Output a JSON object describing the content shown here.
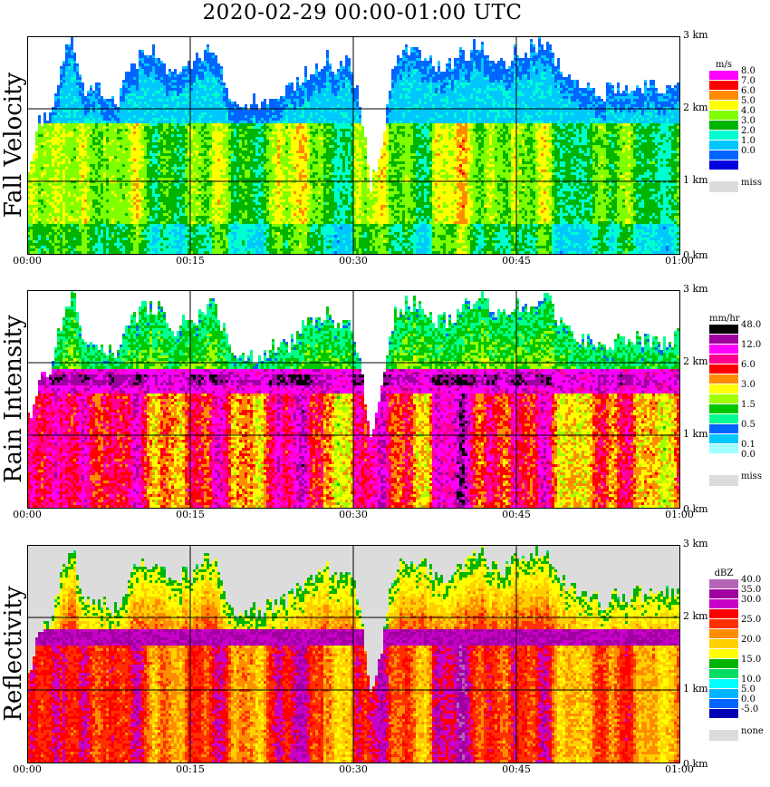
{
  "header": {
    "title": "2020-02-29   00:00-01:00 UTC"
  },
  "x_ticks": [
    "00:00",
    "00:15",
    "00:30",
    "00:45",
    "01:00"
  ],
  "y_ticks": [
    "0 km",
    "1 km",
    "2 km",
    "3 km"
  ],
  "panels": [
    {
      "id": "fall-velocity",
      "title": "Fall Velocity",
      "legend_unit": "m/s",
      "legend": [
        {
          "label": "8.0",
          "color": "#ff00ff"
        },
        {
          "label": "7.0",
          "color": "#ff0000"
        },
        {
          "label": "6.0",
          "color": "#ff8c00"
        },
        {
          "label": "5.0",
          "color": "#ffff00"
        },
        {
          "label": "4.0",
          "color": "#7fff00"
        },
        {
          "label": "3.0",
          "color": "#00b400"
        },
        {
          "label": "2.0",
          "color": "#00ffd0"
        },
        {
          "label": "1.0",
          "color": "#00c8ff"
        },
        {
          "label": "0.0",
          "color": "#0064ff"
        },
        {
          "label": "",
          "color": "#0000dc"
        },
        {
          "label": "miss",
          "color": "#dcdcdc",
          "missing": true
        }
      ]
    },
    {
      "id": "rain-intensity",
      "title": "Rain Intensity",
      "legend_unit": "mm/hr",
      "legend": [
        {
          "label": "48.0",
          "color": "#000000"
        },
        {
          "label": "",
          "color": "#a000a0"
        },
        {
          "label": "12.0",
          "color": "#ff00ff"
        },
        {
          "label": "",
          "color": "#ff0090"
        },
        {
          "label": "6.0",
          "color": "#ff0000"
        },
        {
          "label": "",
          "color": "#ff8c00"
        },
        {
          "label": "3.0",
          "color": "#ffff00"
        },
        {
          "label": "",
          "color": "#a0ff00"
        },
        {
          "label": "1.5",
          "color": "#00c800"
        },
        {
          "label": "",
          "color": "#00ff90"
        },
        {
          "label": "0.5",
          "color": "#0064ff"
        },
        {
          "label": "",
          "color": "#00c8ff"
        },
        {
          "label": "0.1",
          "color": "#a0ffff"
        },
        {
          "label": "0.0",
          "color": "#ffffff"
        },
        {
          "label": "miss",
          "color": "#dcdcdc",
          "missing": true
        }
      ]
    },
    {
      "id": "reflectivity",
      "title": "Reflectivity",
      "legend_unit": "dBZ",
      "legend": [
        {
          "label": "40.0",
          "color": "#b464b4"
        },
        {
          "label": "35.0",
          "color": "#a000a0"
        },
        {
          "label": "30.0",
          "color": "#c800c8"
        },
        {
          "label": "",
          "color": "#ff0000"
        },
        {
          "label": "25.0",
          "color": "#ff3000"
        },
        {
          "label": "",
          "color": "#ff8c00"
        },
        {
          "label": "20.0",
          "color": "#ffd000"
        },
        {
          "label": "",
          "color": "#ffff00"
        },
        {
          "label": "15.0",
          "color": "#00b400"
        },
        {
          "label": "",
          "color": "#00dc64"
        },
        {
          "label": "10.0",
          "color": "#00ffff"
        },
        {
          "label": "5.0",
          "color": "#00b4ff"
        },
        {
          "label": "0.0",
          "color": "#0064ff"
        },
        {
          "label": "-5.0",
          "color": "#0000b4"
        },
        {
          "label": "none",
          "color": "#dcdcdc",
          "missing": true
        }
      ]
    }
  ],
  "chart_data": [
    {
      "type": "heatmap",
      "title": "Fall Velocity",
      "x": [
        "00:00",
        "00:15",
        "00:30",
        "00:45",
        "01:00"
      ],
      "y_km": [
        0,
        1,
        2,
        3
      ],
      "legend_unit": "m/s",
      "color_scale": [
        8.0,
        7.0,
        6.0,
        5.0,
        4.0,
        3.0,
        2.0,
        1.0,
        0.0
      ],
      "missing_label": "miss",
      "echo_top_km": [
        1.2,
        1.8,
        1.9,
        2.6,
        3.0,
        2.2,
        2.3,
        2.2,
        2.1,
        2.5,
        2.7,
        2.8,
        2.7,
        2.4,
        2.6,
        2.6,
        2.8,
        2.8,
        2.3,
        2.0,
        2.1,
        2.1,
        2.2,
        2.2,
        2.3,
        2.5,
        2.6,
        2.7,
        2.5,
        2.7,
        2.1,
        0.9,
        1.6,
        2.6,
        2.8,
        2.8,
        2.7,
        2.6,
        2.6,
        2.7,
        2.8,
        2.9,
        2.7,
        2.6,
        2.8,
        2.8,
        2.9,
        2.9,
        2.6,
        2.4,
        2.3,
        2.3,
        2.2,
        2.3,
        2.3,
        2.3,
        2.3,
        2.3,
        2.3,
        2.4
      ]
    },
    {
      "type": "heatmap",
      "title": "Rain Intensity",
      "x": [
        "00:00",
        "00:15",
        "00:30",
        "00:45",
        "01:00"
      ],
      "y_km": [
        0,
        1,
        2,
        3
      ],
      "legend_unit": "mm/hr",
      "color_scale": [
        48.0,
        12.0,
        6.0,
        3.0,
        1.5,
        0.5,
        0.1,
        0.0
      ],
      "missing_label": "miss",
      "bright_band_km": 1.75,
      "echo_top_km": [
        1.2,
        1.8,
        1.9,
        2.6,
        3.0,
        2.2,
        2.3,
        2.2,
        2.1,
        2.5,
        2.7,
        2.8,
        2.7,
        2.4,
        2.6,
        2.6,
        2.8,
        2.8,
        2.3,
        2.0,
        2.1,
        2.1,
        2.2,
        2.2,
        2.3,
        2.5,
        2.6,
        2.7,
        2.5,
        2.7,
        2.1,
        0.9,
        1.6,
        2.6,
        2.8,
        2.8,
        2.7,
        2.6,
        2.6,
        2.7,
        2.8,
        2.9,
        2.7,
        2.6,
        2.8,
        2.8,
        2.9,
        2.9,
        2.6,
        2.4,
        2.3,
        2.3,
        2.2,
        2.3,
        2.3,
        2.3,
        2.3,
        2.3,
        2.3,
        2.4
      ]
    },
    {
      "type": "heatmap",
      "title": "Reflectivity",
      "x": [
        "00:00",
        "00:15",
        "00:30",
        "00:45",
        "01:00"
      ],
      "y_km": [
        0,
        1,
        2,
        3
      ],
      "legend_unit": "dBZ",
      "color_scale": [
        40.0,
        35.0,
        30.0,
        25.0,
        20.0,
        15.0,
        10.0,
        5.0,
        0.0,
        -5.0
      ],
      "missing_label": "none",
      "echo_top_km": [
        1.2,
        1.8,
        1.9,
        2.6,
        3.0,
        2.2,
        2.3,
        2.2,
        2.1,
        2.5,
        2.7,
        2.8,
        2.7,
        2.4,
        2.6,
        2.6,
        2.8,
        2.8,
        2.3,
        2.0,
        2.1,
        2.1,
        2.2,
        2.2,
        2.3,
        2.5,
        2.6,
        2.7,
        2.5,
        2.7,
        2.1,
        0.9,
        1.6,
        2.6,
        2.8,
        2.8,
        2.7,
        2.6,
        2.6,
        2.7,
        2.8,
        2.9,
        2.7,
        2.6,
        2.8,
        2.8,
        2.9,
        2.9,
        2.6,
        2.4,
        2.3,
        2.3,
        2.2,
        2.3,
        2.3,
        2.3,
        2.3,
        2.3,
        2.3,
        2.4
      ]
    }
  ]
}
